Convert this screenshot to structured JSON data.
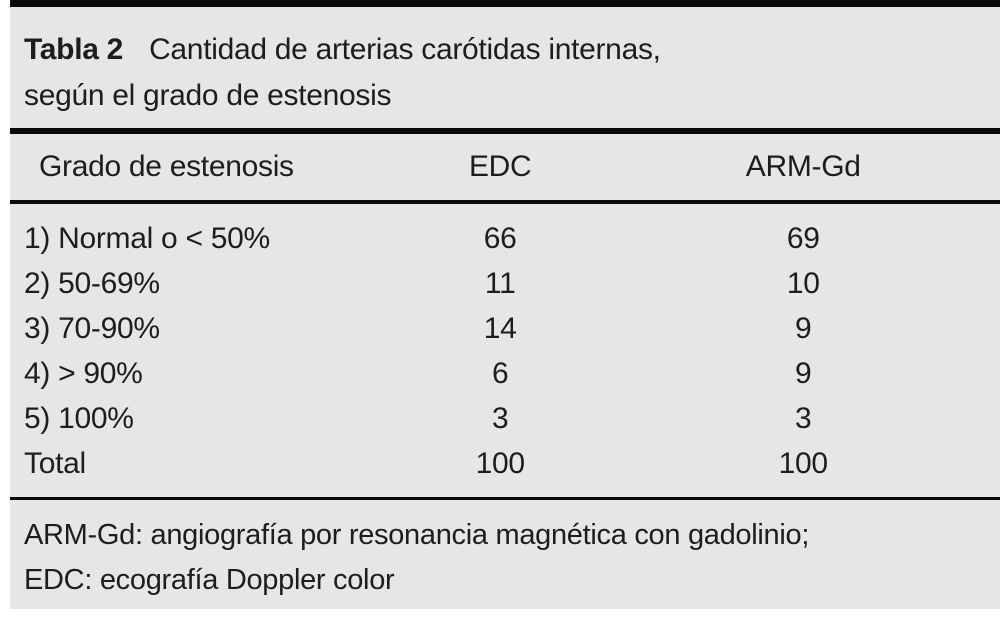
{
  "table": {
    "tag": "Tabla 2",
    "title_line1": "Cantidad de arterias carótidas internas,",
    "title_line2": "según el grado de estenosis",
    "columns": [
      "Grado de estenosis",
      "EDC",
      "ARM-Gd"
    ],
    "rows": [
      {
        "label": "1) Normal o < 50%",
        "edc": "66",
        "arm_gd": "69"
      },
      {
        "label": "2) 50-69%",
        "edc": "11",
        "arm_gd": "10"
      },
      {
        "label": "3) 70-90%",
        "edc": "14",
        "arm_gd": "9"
      },
      {
        "label": "4) > 90%",
        "edc": "6",
        "arm_gd": "9"
      },
      {
        "label": "5) 100%",
        "edc": "3",
        "arm_gd": "3"
      },
      {
        "label": "Total",
        "edc": "100",
        "arm_gd": "100"
      }
    ],
    "footnote_line1": "ARM-Gd: angiografía por resonancia magnética con gadolinio;",
    "footnote_line2": "EDC: ecografía Doppler color",
    "colors": {
      "panel_bg": "#e5e6e7",
      "rule": "#0a0a0a",
      "text": "#1d1d1d"
    }
  }
}
